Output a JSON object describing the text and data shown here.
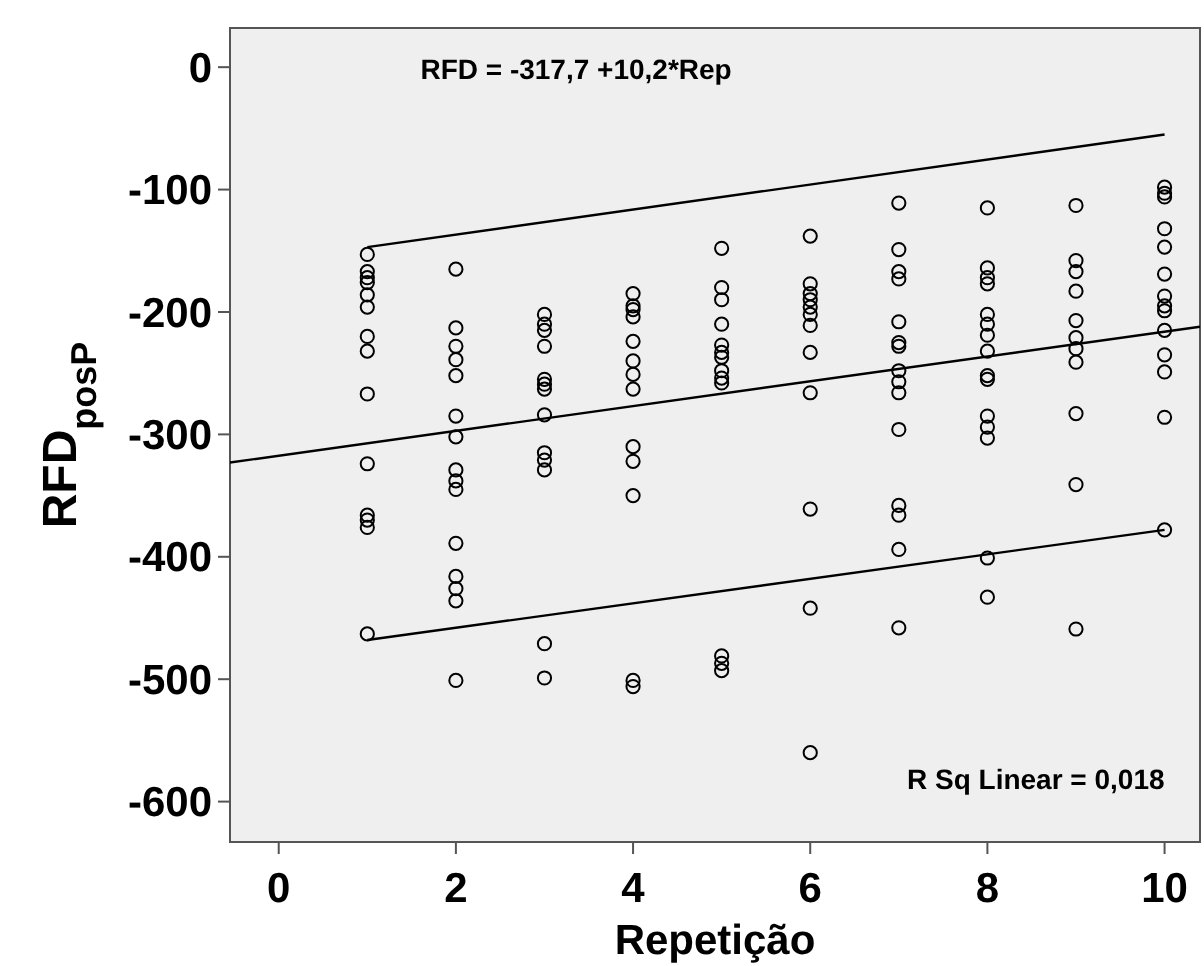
{
  "chart_data": {
    "type": "scatter",
    "xlabel": "Repetição",
    "ylabel": "RFD$_{posP}$",
    "xlim": [
      -0.55,
      10.4
    ],
    "ylim": [
      -633,
      32
    ],
    "xticks": [
      0,
      2,
      4,
      6,
      8,
      10
    ],
    "yticks": [
      0,
      -100,
      -200,
      -300,
      -400,
      -500,
      -600
    ],
    "grid": false,
    "annotations": [
      "RFD = -317,7 +10,2*Rep",
      "R Sq Linear = 0,018"
    ],
    "series": [
      {
        "marker": "circle",
        "color": "#000000",
        "x": [
          1,
          1,
          1,
          1,
          1,
          1,
          1,
          1,
          1,
          1,
          1,
          1,
          1,
          1,
          2,
          2,
          2,
          2,
          2,
          2,
          2,
          2,
          2,
          2,
          2,
          2,
          2,
          2,
          2,
          3,
          3,
          3,
          3,
          3,
          3,
          3,
          3,
          3,
          3,
          3,
          3,
          3,
          4,
          4,
          4,
          4,
          4,
          4,
          4,
          4,
          4,
          4,
          4,
          4,
          4,
          5,
          5,
          5,
          5,
          5,
          5,
          5,
          5,
          5,
          5,
          5,
          5,
          5,
          6,
          6,
          6,
          6,
          6,
          6,
          6,
          6,
          6,
          6,
          6,
          6,
          7,
          7,
          7,
          7,
          7,
          7,
          7,
          7,
          7,
          7,
          7,
          7,
          7,
          7,
          7,
          8,
          8,
          8,
          8,
          8,
          8,
          8,
          8,
          8,
          8,
          8,
          8,
          8,
          8,
          8,
          9,
          9,
          9,
          9,
          9,
          9,
          9,
          9,
          9,
          9,
          9,
          10,
          10,
          10,
          10,
          10,
          10,
          10,
          10,
          10,
          10,
          10,
          10,
          10,
          10
        ],
        "values": [
          -153,
          -167,
          -172,
          -176,
          -186,
          -196,
          -220,
          -232,
          -267,
          -324,
          -366,
          -370,
          -376,
          -463,
          -165,
          -213,
          -228,
          -239,
          -252,
          -285,
          -302,
          -329,
          -338,
          -345,
          -389,
          -416,
          -426,
          -436,
          -501,
          -202,
          -210,
          -215,
          -228,
          -255,
          -259,
          -263,
          -284,
          -315,
          -321,
          -329,
          -471,
          -499,
          -185,
          -195,
          -198,
          -204,
          -224,
          -240,
          -251,
          -263,
          -310,
          -322,
          -350,
          -501,
          -506,
          -148,
          -180,
          -190,
          -210,
          -227,
          -233,
          -237,
          -248,
          -254,
          -258,
          -481,
          -487,
          -493,
          -138,
          -177,
          -185,
          -190,
          -196,
          -202,
          -211,
          -233,
          -266,
          -361,
          -442,
          -560,
          -111,
          -149,
          -167,
          -173,
          -208,
          -225,
          -228,
          -248,
          -257,
          -266,
          -296,
          -358,
          -366,
          -394,
          -458,
          -115,
          -164,
          -172,
          -177,
          -202,
          -210,
          -219,
          -232,
          -252,
          -255,
          -285,
          -294,
          -303,
          -401,
          -433,
          -113,
          -158,
          -167,
          -183,
          -207,
          -221,
          -230,
          -241,
          -283,
          -341,
          -459,
          -98,
          -103,
          -106,
          -132,
          -147,
          -169,
          -187,
          -195,
          -199,
          -215,
          -235,
          -249,
          -286,
          -378
        ]
      },
      {
        "type": "line",
        "marker": "none",
        "color": "#000000",
        "x": [
          -0.55,
          10.4
        ],
        "values": [
          -323,
          -212
        ]
      },
      {
        "type": "line",
        "marker": "none",
        "color": "#000000",
        "x": [
          1,
          10
        ],
        "values": [
          -147,
          -55
        ]
      },
      {
        "type": "line",
        "marker": "none",
        "color": "#000000",
        "x": [
          1,
          10
        ],
        "values": [
          -468,
          -378
        ]
      }
    ]
  }
}
